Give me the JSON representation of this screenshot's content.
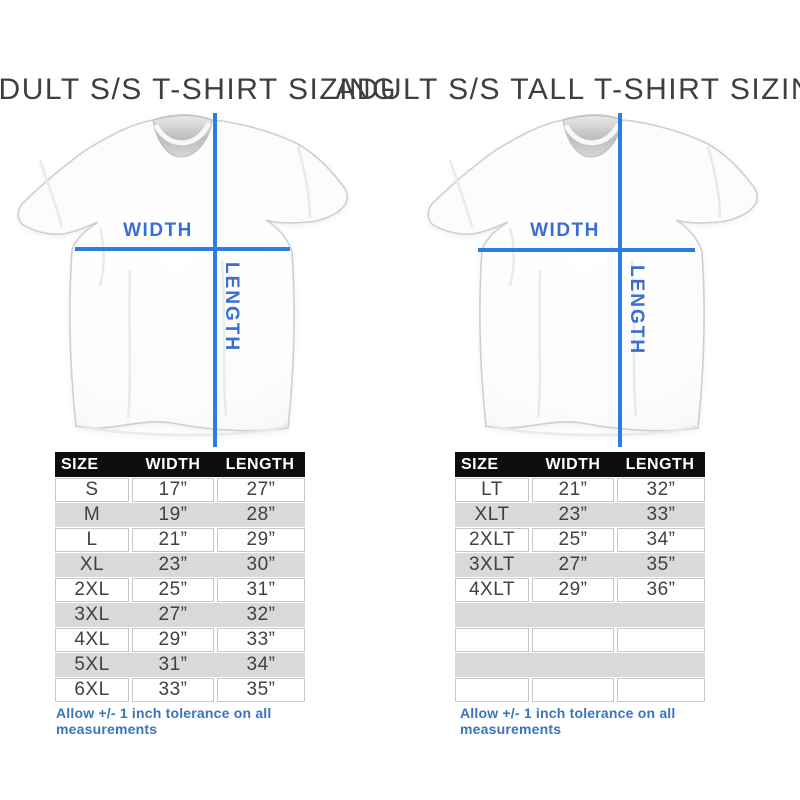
{
  "colors": {
    "background": "#ffffff",
    "measure_line": "#2d7ce0",
    "measure_label": "#3a6ed2",
    "footer_text": "#3b74bd",
    "table_header_bg": "#0d0d0d",
    "table_header_text": "#ffffff",
    "row_alt_bg": "#d9d9d9",
    "cell_border": "#c8c8c8",
    "body_text": "#414141",
    "title_text": "#3f3f3f"
  },
  "panels": [
    {
      "title": "ADULT S/S T-SHIRT SIZING",
      "diagram": {
        "width_label": "WIDTH",
        "length_label": "LENGTH"
      },
      "table": {
        "headers": [
          "SIZE",
          "WIDTH",
          "LENGTH"
        ],
        "rows": [
          [
            "S",
            "17”",
            "27”"
          ],
          [
            "M",
            "19”",
            "28”"
          ],
          [
            "L",
            "21”",
            "29”"
          ],
          [
            "XL",
            "23”",
            "30”"
          ],
          [
            "2XL",
            "25”",
            "31”"
          ],
          [
            "3XL",
            "27”",
            "32”"
          ],
          [
            "4XL",
            "29”",
            "33”"
          ],
          [
            "5XL",
            "31”",
            "34”"
          ],
          [
            "6XL",
            "33”",
            "35”"
          ]
        ]
      },
      "footer": "Allow +/- 1 inch tolerance on all measurements"
    },
    {
      "title": "ADULT S/S TALL T-SHIRT SIZING",
      "diagram": {
        "width_label": "WIDTH",
        "length_label": "LENGTH"
      },
      "table": {
        "headers": [
          "SIZE",
          "WIDTH",
          "LENGTH"
        ],
        "rows": [
          [
            "LT",
            "21”",
            "32”"
          ],
          [
            "XLT",
            "23”",
            "33”"
          ],
          [
            "2XLT",
            "25”",
            "34”"
          ],
          [
            "3XLT",
            "27”",
            "35”"
          ],
          [
            "4XLT",
            "29”",
            "36”"
          ],
          [
            "",
            "",
            ""
          ],
          [
            "",
            "",
            ""
          ],
          [
            "",
            "",
            ""
          ],
          [
            "",
            "",
            ""
          ]
        ]
      },
      "footer": "Allow +/- 1 inch tolerance on all measurements"
    }
  ]
}
